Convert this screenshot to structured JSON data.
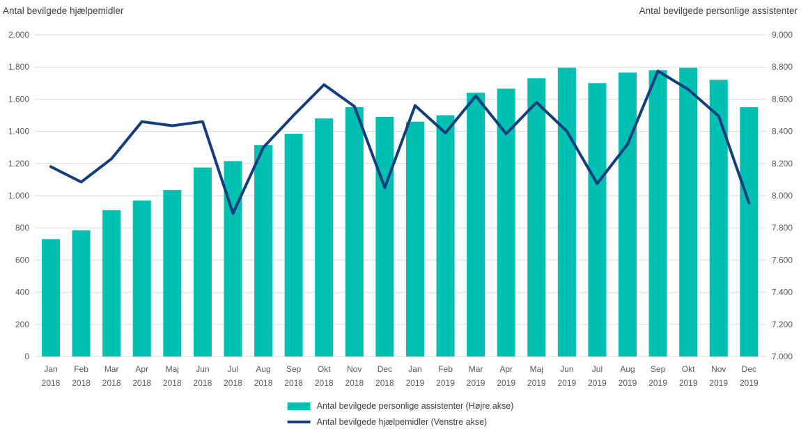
{
  "titles": {
    "left_axis_title": "Antal bevilgede hjælpemidler",
    "right_axis_title": "Antal bevilgede personlige assistenter"
  },
  "colors": {
    "bar": "#00C1B1",
    "line": "#123D7E",
    "grid": "#D9D9D9",
    "tick_text": "#595959",
    "title_text": "#404040"
  },
  "legend": {
    "items": [
      {
        "label": "Antal bevilgede personlige assistenter (Højre akse)",
        "swatch": "bar"
      },
      {
        "label": "Antal bevilgede hjælpemidler (Venstre akse)",
        "swatch": "line"
      }
    ]
  },
  "chart_data": {
    "type": "combo-bar-line",
    "categories": [
      {
        "month": "Jan",
        "year": "2018"
      },
      {
        "month": "Feb",
        "year": "2018"
      },
      {
        "month": "Mar",
        "year": "2018"
      },
      {
        "month": "Apr",
        "year": "2018"
      },
      {
        "month": "Maj",
        "year": "2018"
      },
      {
        "month": "Jun",
        "year": "2018"
      },
      {
        "month": "Jul",
        "year": "2018"
      },
      {
        "month": "Aug",
        "year": "2018"
      },
      {
        "month": "Sep",
        "year": "2018"
      },
      {
        "month": "Okt",
        "year": "2018"
      },
      {
        "month": "Nov",
        "year": "2018"
      },
      {
        "month": "Dec",
        "year": "2018"
      },
      {
        "month": "Jan",
        "year": "2019"
      },
      {
        "month": "Feb",
        "year": "2019"
      },
      {
        "month": "Mar",
        "year": "2019"
      },
      {
        "month": "Apr",
        "year": "2019"
      },
      {
        "month": "Maj",
        "year": "2019"
      },
      {
        "month": "Jun",
        "year": "2019"
      },
      {
        "month": "Jul",
        "year": "2019"
      },
      {
        "month": "Aug",
        "year": "2019"
      },
      {
        "month": "Sep",
        "year": "2019"
      },
      {
        "month": "Okt",
        "year": "2019"
      },
      {
        "month": "Nov",
        "year": "2019"
      },
      {
        "month": "Dec",
        "year": "2019"
      }
    ],
    "series": [
      {
        "name": "Antal bevilgede personlige assistenter (Højre akse)",
        "type": "bar",
        "axis": "right",
        "values": [
          7730,
          7785,
          7910,
          7970,
          8035,
          8175,
          8215,
          8315,
          8385,
          8480,
          8550,
          8490,
          8460,
          8500,
          8640,
          8665,
          8730,
          8795,
          8700,
          8765,
          8780,
          8795,
          8720,
          8550
        ]
      },
      {
        "name": "Antal bevilgede hjælpemidler (Venstre akse)",
        "type": "line",
        "axis": "left",
        "values": [
          1180,
          1085,
          1230,
          1460,
          1435,
          1460,
          890,
          1300,
          1500,
          1690,
          1555,
          1050,
          1560,
          1390,
          1620,
          1385,
          1580,
          1400,
          1075,
          1320,
          1775,
          1660,
          1495,
          955
        ]
      }
    ],
    "left_axis": {
      "min": 0,
      "max": 2000,
      "step": 200,
      "tick_labels": [
        "2.000",
        "1.800",
        "1.600",
        "1.400",
        "1.200",
        "1.000",
        "800",
        "600",
        "400",
        "200",
        "0"
      ]
    },
    "right_axis": {
      "min": 7000,
      "max": 9000,
      "step": 200,
      "tick_labels": [
        "9.000",
        "8.800",
        "8.600",
        "8.400",
        "8.200",
        "8.000",
        "7.800",
        "7.600",
        "7.400",
        "7.200",
        "7.000"
      ]
    },
    "grid": true,
    "legend_position": "bottom"
  }
}
